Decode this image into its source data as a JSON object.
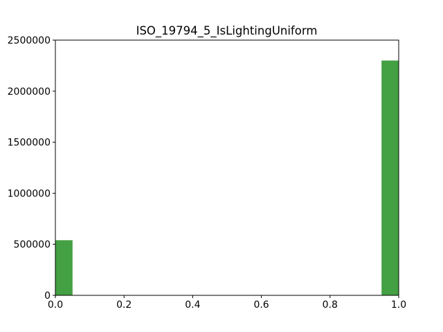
{
  "chart_data": {
    "type": "bar",
    "title": "ISO_19794_5_IsLightingUniform",
    "xlabel": "",
    "ylabel": "",
    "xlim": [
      0,
      1
    ],
    "ylim": [
      0,
      2500000
    ],
    "x_ticks": [
      "0.0",
      "0.2",
      "0.4",
      "0.6",
      "0.8",
      "1.0"
    ],
    "y_ticks": [
      "0",
      "500000",
      "1000000",
      "1500000",
      "2000000",
      "2500000"
    ],
    "bins": [
      {
        "x0": 0.0,
        "x1": 0.05,
        "value": 540000
      },
      {
        "x0": 0.95,
        "x1": 1.0,
        "value": 2300000
      }
    ],
    "bar_color": "#43a043",
    "grid": false
  }
}
